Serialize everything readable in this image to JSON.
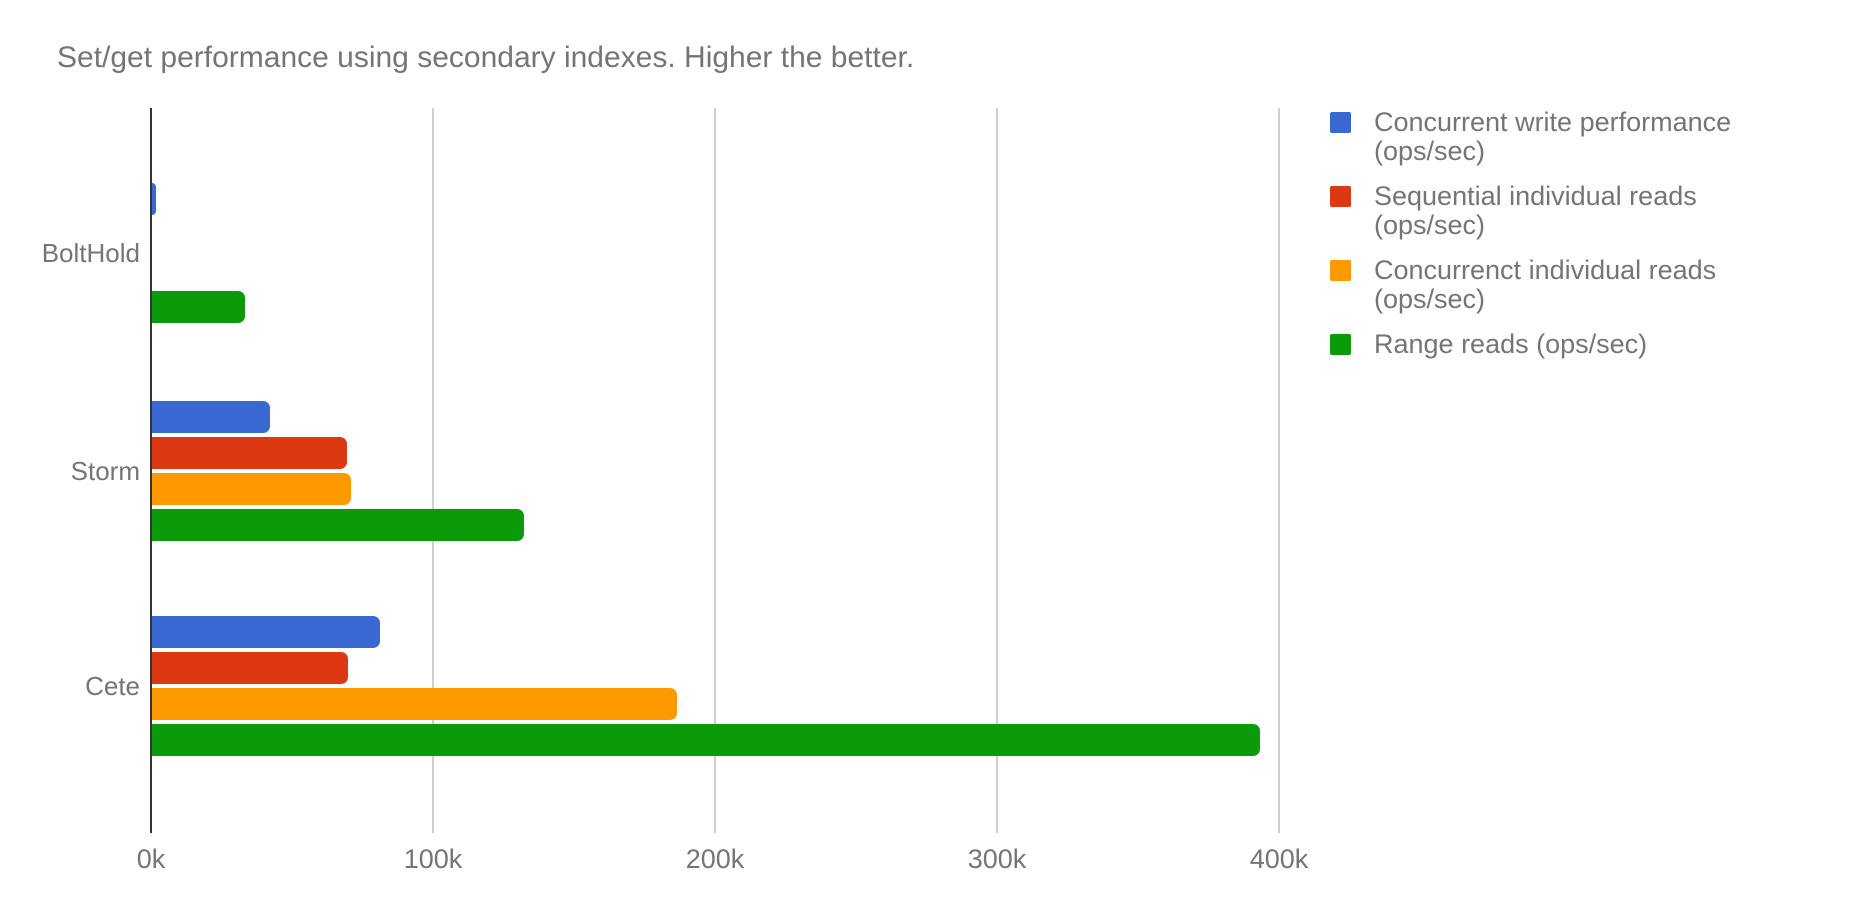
{
  "title": "Set/get performance using secondary indexes. Higher the better.",
  "colors": {
    "blue": "#3A68D2",
    "red": "#DC3912",
    "orange": "#FF9900",
    "green": "#0A9A0A",
    "text_gray": "#757575",
    "axis_line": "#333333",
    "gridline": "#CFCFCF"
  },
  "chart_data": {
    "type": "bar",
    "orientation": "horizontal",
    "title": "Set/get performance using secondary indexes. Higher the better.",
    "categories": [
      "BoltHold",
      "Storm",
      "Cete"
    ],
    "series": [
      {
        "name": "Concurrent write performance (ops/sec)",
        "color": "#3A68D2",
        "values": [
          1400,
          42000,
          81000
        ]
      },
      {
        "name": "Sequential individual reads (ops/sec)",
        "color": "#DC3912",
        "values": [
          0,
          69000,
          69500
        ]
      },
      {
        "name": "Concurrenct individual reads (ops/sec)",
        "color": "#FF9900",
        "values": [
          0,
          70500,
          186000
        ]
      },
      {
        "name": "Range reads (ops/sec)",
        "color": "#0A9A0A",
        "values": [
          33000,
          132000,
          393000
        ]
      }
    ],
    "x_axis": {
      "min": 0,
      "max": 400000,
      "tick_values": [
        0,
        100000,
        200000,
        300000,
        400000
      ],
      "tick_labels": [
        "0k",
        "100k",
        "200k",
        "300k",
        "400k"
      ]
    },
    "grid": true,
    "legend_position": "right"
  }
}
